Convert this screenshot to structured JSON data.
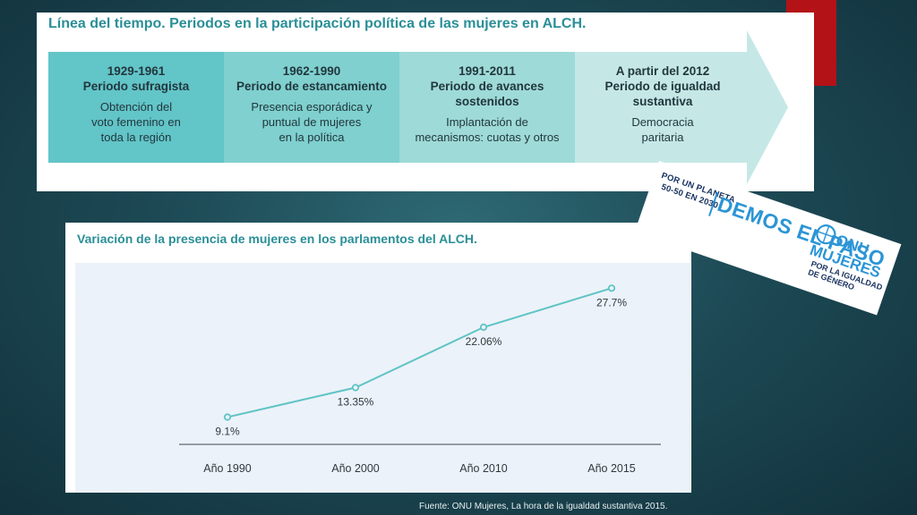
{
  "timeline": {
    "title": "Línea del tiempo. Periodos en la participación política de las mujeres en ALCH.",
    "segments": [
      {
        "head1": "1929-1961",
        "head2": "Periodo sufragista",
        "head3": "",
        "body1": "Obtención del",
        "body2": "voto femenino en",
        "body3": "toda la región",
        "color": "#62c5c8"
      },
      {
        "head1": "1962-1990",
        "head2": "Periodo de estancamiento",
        "head3": "",
        "body1": "Presencia esporádica y",
        "body2": "puntual de mujeres",
        "body3": "en la política",
        "color": "#7fd0cf"
      },
      {
        "head1": "1991-2011",
        "head2": "Periodo de avances",
        "head3": "sostenidos",
        "body1": "Implantación de",
        "body2": "mecanismos: cuotas y otros",
        "body3": "",
        "color": "#9edad8"
      },
      {
        "head1": "A partir del 2012",
        "head2": "Periodo de igualdad",
        "head3": "sustantiva",
        "body1": "Democracia",
        "body2": "paritaria",
        "body3": "",
        "color": "#c5e8e7"
      }
    ]
  },
  "logo": {
    "small1": "POR UN PLANETA",
    "small2": "50-50 EN 2030",
    "big": "DEMOS EL PASO",
    "onu1": "ONU",
    "onu2": "MUJERES",
    "sub1": "POR LA IGUALDAD",
    "sub2": "DE GÉNERO"
  },
  "chart_data": {
    "type": "line",
    "title": "Variación de la presencia de mujeres en los parlamentos del ALCH.",
    "categories": [
      "Año 1990",
      "Año 2000",
      "Año 2010",
      "Año 2015"
    ],
    "values": [
      9.1,
      13.35,
      22.06,
      27.7
    ],
    "value_labels": [
      "9.1%",
      "13.35%",
      "22.06%",
      "27.7%"
    ],
    "ylim": [
      0,
      32
    ],
    "grid": false,
    "line_color": "#5fc4c5"
  },
  "source": "Fuente: ONU Mujeres, La hora de la igualdad sustantiva 2015."
}
